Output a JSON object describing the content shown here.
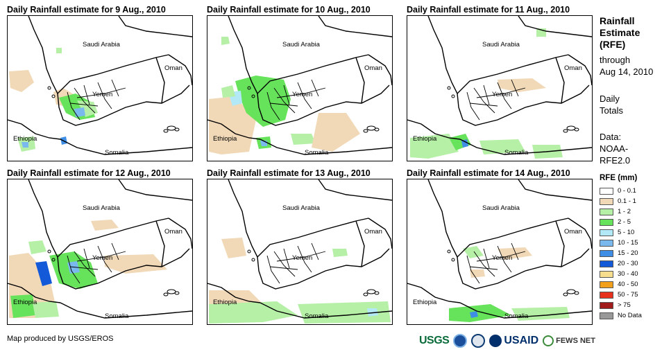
{
  "panels": [
    {
      "title": "Daily Rainfall estimate for 9 Aug., 2010",
      "labels": {
        "saudi": "Saudi Arabia",
        "oman": "Oman",
        "yemen": "Yemen",
        "ethiopia": "Ethiopia",
        "somalia": "Somalia"
      }
    },
    {
      "title": "Daily Rainfall estimate for 10 Aug., 2010",
      "labels": {
        "saudi": "Saudi Arabia",
        "oman": "Oman",
        "yemen": "Yemen",
        "ethiopia": "Ethiopia",
        "somalia": "Somalia"
      }
    },
    {
      "title": "Daily Rainfall estimate for 11 Aug., 2010",
      "labels": {
        "saudi": "Saudi Arabia",
        "oman": "Oman",
        "yemen": "Yemen",
        "ethiopia": "Ethiopia",
        "somalia": "Somalia"
      }
    },
    {
      "title": "Daily Rainfall estimate for 12 Aug., 2010",
      "labels": {
        "saudi": "Saudi Arabia",
        "oman": "Oman",
        "yemen": "Yemen",
        "ethiopia": "Ethiopia",
        "somalia": "Somalia"
      }
    },
    {
      "title": "Daily Rainfall estimate for 13 Aug., 2010",
      "labels": {
        "saudi": "Saudi Arabia",
        "oman": "Oman",
        "yemen": "Yemen",
        "ethiopia": "Ethiopia",
        "somalia": "Somalia"
      }
    },
    {
      "title": "Daily Rainfall estimate for 14 Aug., 2010",
      "labels": {
        "saudi": "Saudi Arabia",
        "oman": "Oman",
        "yemen": "Yemen",
        "ethiopia": "Ethiopia",
        "somalia": "Somalia"
      }
    }
  ],
  "sidebar": {
    "title_lines": [
      "Rainfall",
      "Estimate",
      "(RFE)"
    ],
    "through_lines": [
      "through",
      "Aug 14, 2010"
    ],
    "daily_lines": [
      "Daily",
      "Totals"
    ],
    "data_lines": [
      "Data:",
      "NOAA-",
      "RFE2.0"
    ]
  },
  "legend": {
    "title": "RFE (mm)",
    "items": [
      {
        "label": "0 - 0.1",
        "color": "#ffffff"
      },
      {
        "label": "0.1 - 1",
        "color": "#f1d9b8"
      },
      {
        "label": "1 - 2",
        "color": "#b5f0a6"
      },
      {
        "label": "2 - 5",
        "color": "#66e35a"
      },
      {
        "label": "5 - 10",
        "color": "#b3e8f7"
      },
      {
        "label": "10 - 15",
        "color": "#7ab9ee"
      },
      {
        "label": "15 - 20",
        "color": "#3f8ee6"
      },
      {
        "label": "20 - 30",
        "color": "#1459d8"
      },
      {
        "label": "30 - 40",
        "color": "#f7de8e"
      },
      {
        "label": "40 - 50",
        "color": "#f2a01c"
      },
      {
        "label": "50 - 75",
        "color": "#e8311c"
      },
      {
        "label": "> 75",
        "color": "#a11b1b"
      },
      {
        "label": "No Data",
        "color": "#999999"
      }
    ]
  },
  "footer": {
    "credit": "Map produced by USGS/EROS",
    "logos": {
      "usgs": "USGS",
      "usaid": "USAID",
      "fews": "FEWS NET"
    }
  }
}
